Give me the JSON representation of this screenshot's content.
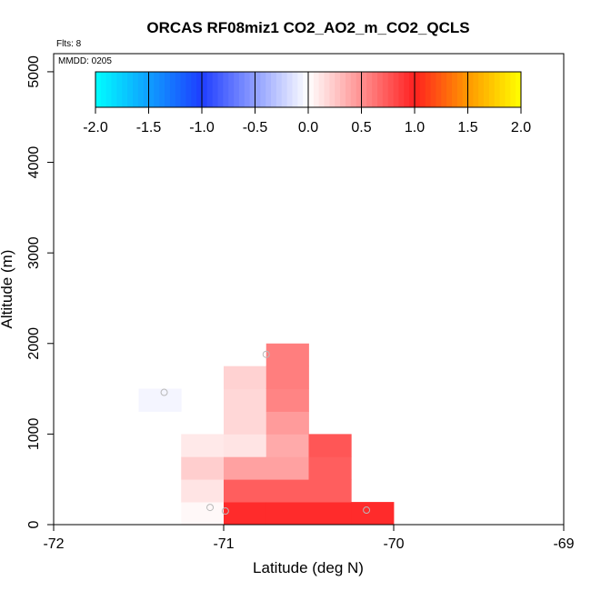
{
  "chart_data": {
    "type": "heatmap",
    "title": "ORCAS RF08miz1 CO2_AO2_m_CO2_QCLS",
    "xlabel": "Latitude (deg N)",
    "ylabel": "Altitude (m)",
    "xlim": [
      -72,
      -69
    ],
    "ylim": [
      0,
      5200
    ],
    "xticks": [
      -72,
      -71,
      -70,
      -69
    ],
    "yticks": [
      0,
      1000,
      2000,
      3000,
      4000,
      5000
    ],
    "annotations": {
      "flights": "Flts: 8",
      "date": "MMDD: 0205"
    },
    "colorbar": {
      "range": [
        -2.0,
        2.0
      ],
      "tick_values": [
        -2,
        -1.5,
        -1,
        -0.5,
        0,
        0.5,
        1,
        1.5,
        2
      ],
      "tick_labels": [
        "-2.0",
        "-1.5",
        "-1.0",
        "-0.5",
        "0.0",
        "0.5",
        "1.0",
        "1.5",
        "2.0"
      ],
      "stops": [
        {
          "v": -2.0,
          "color": "#00ffff"
        },
        {
          "v": -1.0,
          "color": "#1e3dff"
        },
        {
          "v": 0.0,
          "color": "#ffffff"
        },
        {
          "v": 1.0,
          "color": "#ff2020"
        },
        {
          "v": 1.5,
          "color": "#ff9800"
        },
        {
          "v": 2.0,
          "color": "#ffff00"
        }
      ]
    },
    "cells": [
      {
        "lat0": -71.5,
        "lat1": -71.25,
        "alt0": 1250,
        "alt1": 1500,
        "value": -0.05
      },
      {
        "lat0": -71.25,
        "lat1": -71.0,
        "alt0": 0,
        "alt1": 250,
        "value": 0.03
      },
      {
        "lat0": -71.25,
        "lat1": -71.0,
        "alt0": 250,
        "alt1": 500,
        "value": 0.12
      },
      {
        "lat0": -71.25,
        "lat1": -71.0,
        "alt0": 500,
        "alt1": 750,
        "value": 0.22
      },
      {
        "lat0": -71.25,
        "lat1": -71.0,
        "alt0": 750,
        "alt1": 1000,
        "value": 0.1
      },
      {
        "lat0": -71.0,
        "lat1": -70.75,
        "alt0": 0,
        "alt1": 250,
        "value": 0.95
      },
      {
        "lat0": -71.0,
        "lat1": -70.75,
        "alt0": 250,
        "alt1": 500,
        "value": 0.72
      },
      {
        "lat0": -71.0,
        "lat1": -70.75,
        "alt0": 500,
        "alt1": 750,
        "value": 0.42
      },
      {
        "lat0": -71.0,
        "lat1": -70.75,
        "alt0": 750,
        "alt1": 1000,
        "value": 0.12
      },
      {
        "lat0": -71.0,
        "lat1": -70.75,
        "alt0": 1000,
        "alt1": 1250,
        "value": 0.18
      },
      {
        "lat0": -71.0,
        "lat1": -70.75,
        "alt0": 1250,
        "alt1": 1500,
        "value": 0.18
      },
      {
        "lat0": -71.0,
        "lat1": -70.75,
        "alt0": 1500,
        "alt1": 1750,
        "value": 0.2
      },
      {
        "lat0": -70.75,
        "lat1": -70.5,
        "alt0": 0,
        "alt1": 250,
        "value": 0.95
      },
      {
        "lat0": -70.75,
        "lat1": -70.5,
        "alt0": 250,
        "alt1": 500,
        "value": 0.72
      },
      {
        "lat0": -70.75,
        "lat1": -70.5,
        "alt0": 500,
        "alt1": 750,
        "value": 0.42
      },
      {
        "lat0": -70.75,
        "lat1": -70.5,
        "alt0": 750,
        "alt1": 1000,
        "value": 0.38
      },
      {
        "lat0": -70.75,
        "lat1": -70.5,
        "alt0": 1000,
        "alt1": 1250,
        "value": 0.45
      },
      {
        "lat0": -70.75,
        "lat1": -70.5,
        "alt0": 1250,
        "alt1": 1500,
        "value": 0.55
      },
      {
        "lat0": -70.75,
        "lat1": -70.5,
        "alt0": 1500,
        "alt1": 1750,
        "value": 0.58
      },
      {
        "lat0": -70.75,
        "lat1": -70.5,
        "alt0": 1750,
        "alt1": 2000,
        "value": 0.58
      },
      {
        "lat0": -70.5,
        "lat1": -70.25,
        "alt0": 0,
        "alt1": 250,
        "value": 0.95
      },
      {
        "lat0": -70.5,
        "lat1": -70.25,
        "alt0": 250,
        "alt1": 500,
        "value": 0.72
      },
      {
        "lat0": -70.5,
        "lat1": -70.25,
        "alt0": 500,
        "alt1": 750,
        "value": 0.72
      },
      {
        "lat0": -70.5,
        "lat1": -70.25,
        "alt0": 750,
        "alt1": 1000,
        "value": 0.76
      },
      {
        "lat0": -70.25,
        "lat1": -70.0,
        "alt0": 0,
        "alt1": 250,
        "value": 0.95
      }
    ],
    "points": [
      {
        "lat": -71.35,
        "alt": 1460
      },
      {
        "lat": -70.75,
        "alt": 1880
      },
      {
        "lat": -71.08,
        "alt": 190
      },
      {
        "lat": -70.99,
        "alt": 150
      },
      {
        "lat": -70.16,
        "alt": 160
      }
    ]
  }
}
